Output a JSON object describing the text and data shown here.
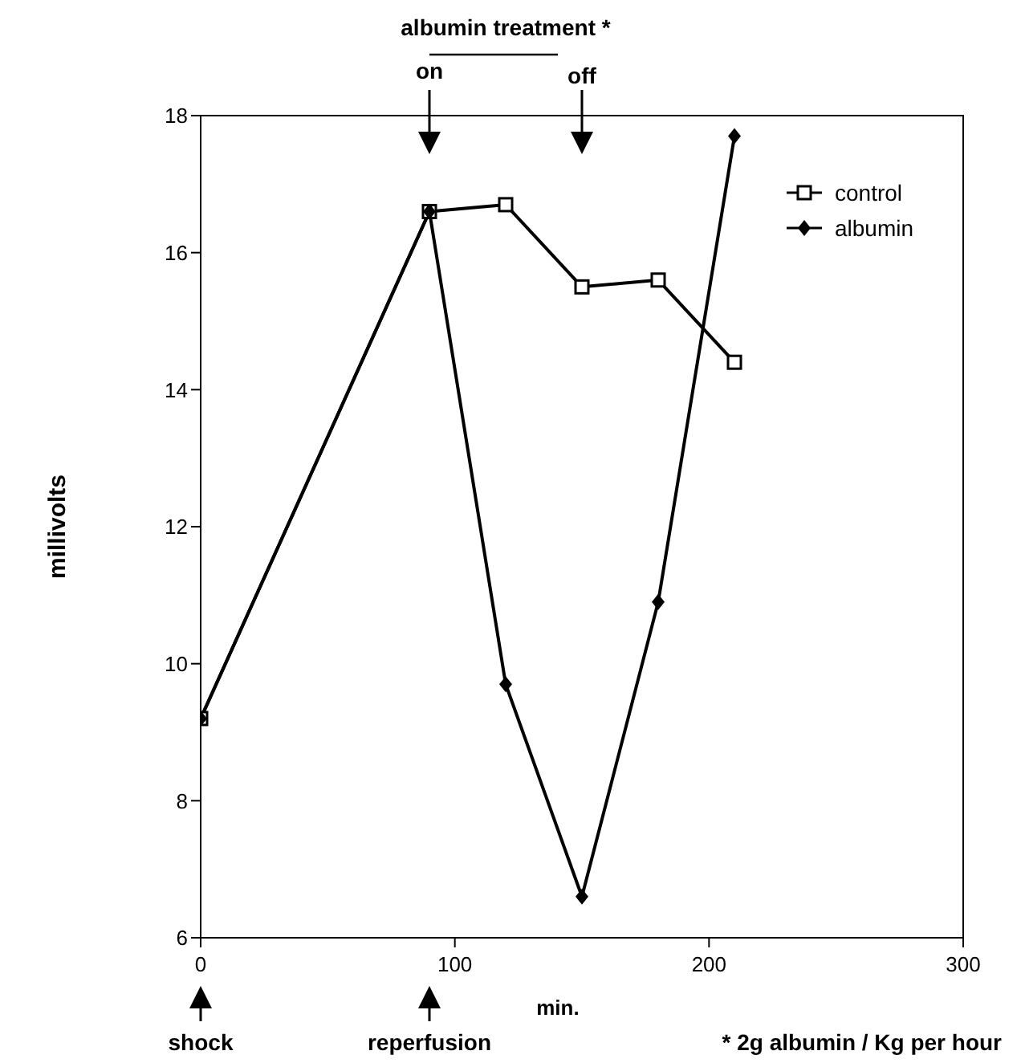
{
  "chart_data": {
    "type": "line",
    "ylabel": "millivolts",
    "xlabel": "min.",
    "x": [
      0,
      90,
      120,
      150,
      180,
      210
    ],
    "series": [
      {
        "name": "control",
        "color": "#000000",
        "marker": "square",
        "values": [
          9.2,
          16.6,
          16.7,
          15.5,
          15.6,
          14.4
        ]
      },
      {
        "name": "albumin",
        "color": "#000000",
        "marker": "diamond",
        "values": [
          9.2,
          16.6,
          9.7,
          6.6,
          10.9,
          17.7
        ]
      }
    ],
    "xlim": [
      0,
      300
    ],
    "xticks": [
      0,
      100,
      200,
      300
    ],
    "ylim": [
      6,
      18
    ],
    "yticks": [
      6,
      8,
      10,
      12,
      14,
      16,
      18
    ],
    "grid": false,
    "legend": "top right",
    "line_style": "solid",
    "annotations": [
      "albumin treatment *",
      "on",
      "off",
      "shock",
      "reperfusion",
      "* 2g albumin / Kg per hour"
    ]
  }
}
